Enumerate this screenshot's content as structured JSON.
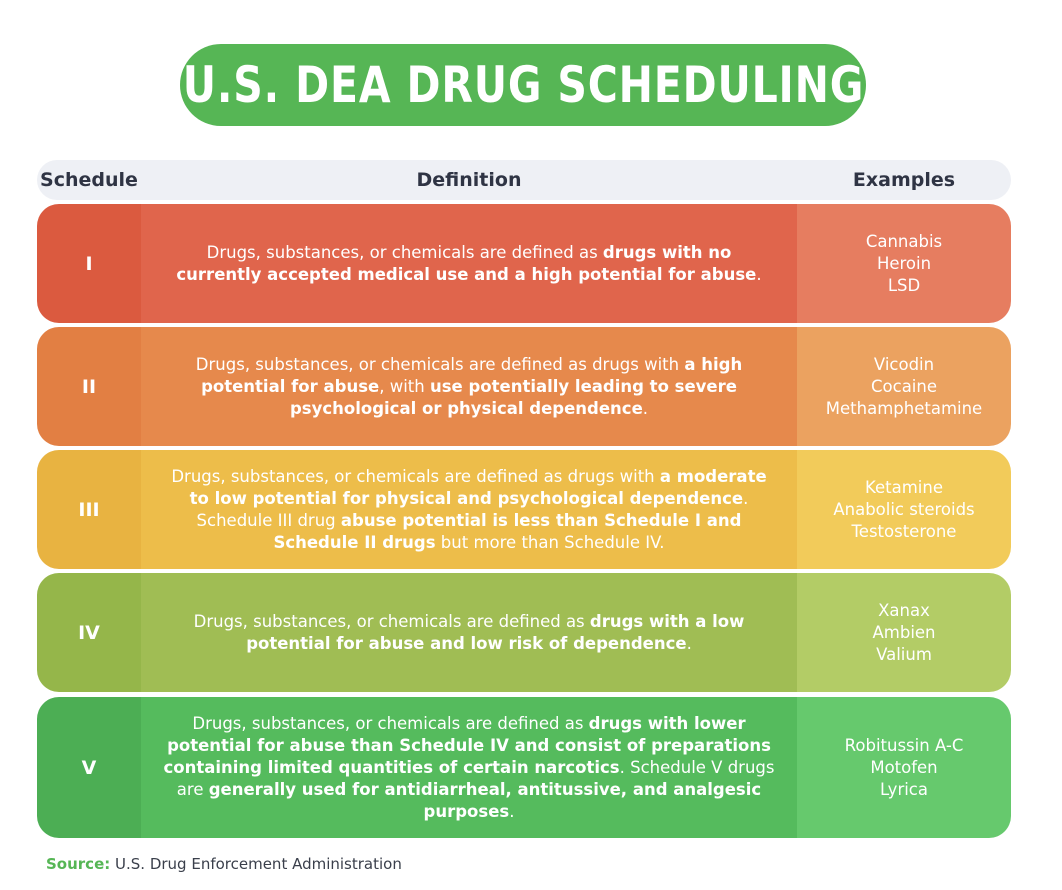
{
  "title": "U.S. DEA DRUG SCHEDULING",
  "headers": {
    "schedule": "Schedule",
    "definition": "Definition",
    "examples": "Examples"
  },
  "rows": [
    {
      "schedule": "I",
      "definition": [
        {
          "t": "Drugs, substances, or chemicals are defined as ",
          "b": false
        },
        {
          "t": "drugs with no currently accepted medical use and a high potential for abuse",
          "b": true
        },
        {
          "t": ".",
          "b": false
        }
      ],
      "examples": [
        "Cannabis",
        "Heroin",
        "LSD"
      ],
      "colors": {
        "num": "#db5a3f",
        "def": "#e0654c",
        "ex": "#e67d60"
      }
    },
    {
      "schedule": "II",
      "definition": [
        {
          "t": "Drugs, substances, or chemicals are defined as drugs with ",
          "b": false
        },
        {
          "t": "a high potential for abuse",
          "b": true
        },
        {
          "t": ", with ",
          "b": false
        },
        {
          "t": "use potentially leading to severe psychological or physical dependence",
          "b": true
        },
        {
          "t": ".",
          "b": false
        }
      ],
      "examples": [
        "Vicodin",
        "Cocaine",
        "Methamphetamine"
      ],
      "colors": {
        "num": "#e27f43",
        "def": "#e6894c",
        "ex": "#eba260"
      }
    },
    {
      "schedule": "III",
      "definition": [
        {
          "t": "Drugs, substances, or chemicals are defined as drugs with ",
          "b": false
        },
        {
          "t": "a moderate to low potential for physical and psychological dependence",
          "b": true
        },
        {
          "t": ". Schedule III drug ",
          "b": false
        },
        {
          "t": "abuse potential is less than Schedule I and Schedule II drugs",
          "b": true
        },
        {
          "t": " but more than Schedule IV.",
          "b": false
        }
      ],
      "examples": [
        "Ketamine",
        "Anabolic steroids",
        "Testosterone"
      ],
      "colors": {
        "num": "#e8b341",
        "def": "#edbd4a",
        "ex": "#f2cb5a"
      }
    },
    {
      "schedule": "IV",
      "definition": [
        {
          "t": "Drugs, substances, or chemicals are defined as ",
          "b": false
        },
        {
          "t": "drugs with a low potential for abuse and low risk of dependence",
          "b": true
        },
        {
          "t": ".",
          "b": false
        }
      ],
      "examples": [
        "Xanax",
        "Ambien",
        "Valium"
      ],
      "colors": {
        "num": "#95b64a",
        "def": "#a0bd54",
        "ex": "#b3cc66"
      }
    },
    {
      "schedule": "V",
      "definition": [
        {
          "t": "Drugs, substances, or chemicals are defined as ",
          "b": false
        },
        {
          "t": "drugs with lower potential for abuse than Schedule IV and consist of preparations containing limited quantities of certain narcotics",
          "b": true
        },
        {
          "t": ". Schedule V drugs are ",
          "b": false
        },
        {
          "t": "generally used for antidiarrheal, antitussive, and analgesic purposes",
          "b": true
        },
        {
          "t": ".",
          "b": false
        }
      ],
      "examples": [
        "Robitussin A-C",
        "Motofen",
        "Lyrica"
      ],
      "colors": {
        "num": "#4cae54",
        "def": "#55bb5d",
        "ex": "#66c96d"
      }
    }
  ],
  "source": {
    "label": "Source:",
    "text": " U.S. Drug Enforcement Administration"
  }
}
